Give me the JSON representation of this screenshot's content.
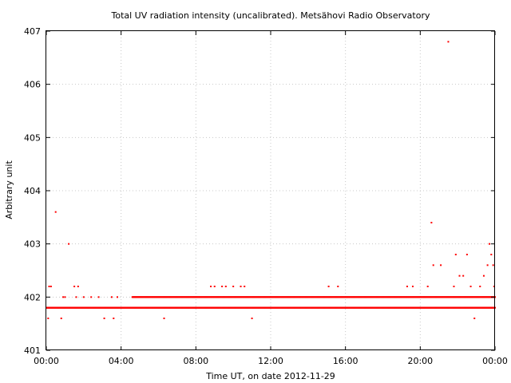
{
  "chart_data": {
    "type": "scatter",
    "title": "Total UV radiation intensity (uncalibrated). Metsähovi Radio Observatory",
    "xlabel": "Time UT, on date 2012-11-29",
    "ylabel": "Arbitrary unit",
    "xlim": [
      0,
      24
    ],
    "ylim": [
      401,
      407
    ],
    "xticks": [
      0,
      4,
      8,
      12,
      16,
      20,
      24
    ],
    "xtick_labels": [
      "00:00",
      "04:00",
      "08:00",
      "12:00",
      "16:00",
      "20:00",
      "00:00"
    ],
    "yticks": [
      401,
      402,
      403,
      404,
      405,
      406,
      407
    ],
    "ytick_labels": [
      "401",
      "402",
      "403",
      "404",
      "405",
      "406",
      "407"
    ],
    "grid": true,
    "marker_color": "#ff0000",
    "series": [
      {
        "baseline_levels": [
          {
            "y": 401.8,
            "x_range": [
              0,
              24
            ]
          },
          {
            "y": 402.0,
            "x_range": [
              4.6,
              24
            ]
          }
        ],
        "points": [
          [
            0.15,
            402.2
          ],
          [
            0.25,
            402.2
          ],
          [
            0.1,
            401.6
          ],
          [
            0.5,
            403.6
          ],
          [
            0.8,
            401.6
          ],
          [
            0.9,
            402.0
          ],
          [
            1.0,
            402.0
          ],
          [
            1.2,
            403.0
          ],
          [
            1.5,
            402.2
          ],
          [
            1.7,
            402.2
          ],
          [
            1.6,
            402.0
          ],
          [
            2.0,
            402.0
          ],
          [
            2.4,
            402.0
          ],
          [
            2.8,
            402.0
          ],
          [
            3.1,
            401.6
          ],
          [
            3.5,
            402.0
          ],
          [
            3.8,
            402.0
          ],
          [
            3.6,
            401.6
          ],
          [
            6.3,
            401.6
          ],
          [
            8.8,
            402.2
          ],
          [
            9.0,
            402.2
          ],
          [
            9.4,
            402.2
          ],
          [
            9.6,
            402.2
          ],
          [
            10.0,
            402.2
          ],
          [
            10.4,
            402.2
          ],
          [
            10.6,
            402.2
          ],
          [
            11.0,
            401.6
          ],
          [
            15.1,
            402.2
          ],
          [
            15.6,
            402.2
          ],
          [
            19.3,
            402.2
          ],
          [
            19.6,
            402.2
          ],
          [
            20.4,
            402.2
          ],
          [
            20.6,
            403.4
          ],
          [
            20.7,
            402.6
          ],
          [
            21.1,
            402.6
          ],
          [
            21.5,
            406.8
          ],
          [
            21.9,
            402.8
          ],
          [
            21.8,
            402.2
          ],
          [
            22.1,
            402.4
          ],
          [
            22.3,
            402.4
          ],
          [
            22.5,
            402.8
          ],
          [
            22.7,
            402.2
          ],
          [
            22.9,
            401.6
          ],
          [
            23.2,
            402.2
          ],
          [
            23.4,
            402.4
          ],
          [
            23.6,
            402.6
          ],
          [
            23.7,
            403.0
          ],
          [
            23.8,
            402.8
          ],
          [
            23.9,
            402.6
          ],
          [
            23.95,
            402.2
          ]
        ]
      }
    ]
  }
}
